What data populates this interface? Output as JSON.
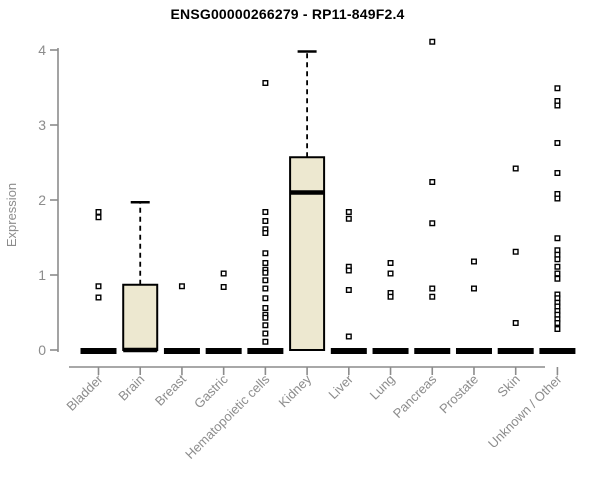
{
  "chart_data": {
    "type": "boxplot",
    "title": "ENSG00000266279 - RP11-849F2.4",
    "ylabel": "Expression",
    "xlabel": "",
    "ylim": [
      0,
      4
    ],
    "yticks": [
      0,
      1,
      2,
      3,
      4
    ],
    "grid": false,
    "legend": "none",
    "colors": {
      "box_fill": "#EDE8D0",
      "box_stroke": "#000000",
      "median": "#000000",
      "whisker": "#000000",
      "point_stroke": "#000000",
      "point_fill": "#ffffff",
      "axis": "#8c8c8c",
      "tick_label": "#8c8c8c",
      "title": "#000000",
      "background": "#ffffff"
    },
    "groups": [
      {
        "label": "Bladder",
        "box": {
          "q1": 0,
          "median": 0,
          "q3": 0,
          "whisker_low": 0,
          "whisker_high": 0
        },
        "points": [
          1.84,
          1.77,
          0.85,
          0.7
        ]
      },
      {
        "label": "Brain",
        "box": {
          "q1": 0,
          "median": 0,
          "q3": 0.87,
          "whisker_low": 0,
          "whisker_high": 1.97
        },
        "points": []
      },
      {
        "label": "Breast",
        "box": {
          "q1": 0,
          "median": 0,
          "q3": 0,
          "whisker_low": 0,
          "whisker_high": 0
        },
        "points": [
          0.85
        ]
      },
      {
        "label": "Gastric",
        "box": {
          "q1": 0,
          "median": 0,
          "q3": 0,
          "whisker_low": 0,
          "whisker_high": 0
        },
        "points": [
          1.02,
          0.84
        ]
      },
      {
        "label": "Hematopoietic cells",
        "box": {
          "q1": 0,
          "median": 0,
          "q3": 0,
          "whisker_low": 0,
          "whisker_high": 0
        },
        "points": [
          3.56,
          1.84,
          1.72,
          1.61,
          1.56,
          1.29,
          1.16,
          1.07,
          1.03,
          0.93,
          0.82,
          0.69,
          0.56,
          0.47,
          0.43,
          0.33,
          0.22,
          0.11
        ]
      },
      {
        "label": "Kidney",
        "box": {
          "q1": 0,
          "median": 2.1,
          "q3": 2.57,
          "whisker_low": 0,
          "whisker_high": 3.98
        },
        "points": []
      },
      {
        "label": "Liver",
        "box": {
          "q1": 0,
          "median": 0,
          "q3": 0,
          "whisker_low": 0,
          "whisker_high": 0
        },
        "points": [
          1.84,
          1.75,
          1.11,
          1.06,
          0.8,
          0.18
        ]
      },
      {
        "label": "Lung",
        "box": {
          "q1": 0,
          "median": 0,
          "q3": 0,
          "whisker_low": 0,
          "whisker_high": 0
        },
        "points": [
          1.16,
          1.02,
          0.76,
          0.71
        ]
      },
      {
        "label": "Pancreas",
        "box": {
          "q1": 0,
          "median": 0,
          "q3": 0,
          "whisker_low": 0,
          "whisker_high": 0
        },
        "points": [
          4.11,
          2.24,
          1.69,
          0.82,
          0.71
        ]
      },
      {
        "label": "Prostate",
        "box": {
          "q1": 0,
          "median": 0,
          "q3": 0,
          "whisker_low": 0,
          "whisker_high": 0
        },
        "points": [
          1.18,
          0.82
        ]
      },
      {
        "label": "Skin",
        "box": {
          "q1": 0,
          "median": 0,
          "q3": 0,
          "whisker_low": 0,
          "whisker_high": 0
        },
        "points": [
          2.42,
          1.31,
          0.36
        ]
      },
      {
        "label": "Unknown / Other",
        "box": {
          "q1": 0,
          "median": 0,
          "q3": 0,
          "whisker_low": 0,
          "whisker_high": 0
        },
        "points": [
          3.49,
          3.32,
          3.26,
          2.76,
          2.36,
          2.08,
          2.02,
          1.49,
          1.33,
          1.27,
          1.21,
          1.11,
          1.02,
          0.95,
          0.74,
          0.69,
          0.63,
          0.58,
          0.52,
          0.47,
          0.41,
          0.36,
          0.28
        ]
      }
    ]
  }
}
